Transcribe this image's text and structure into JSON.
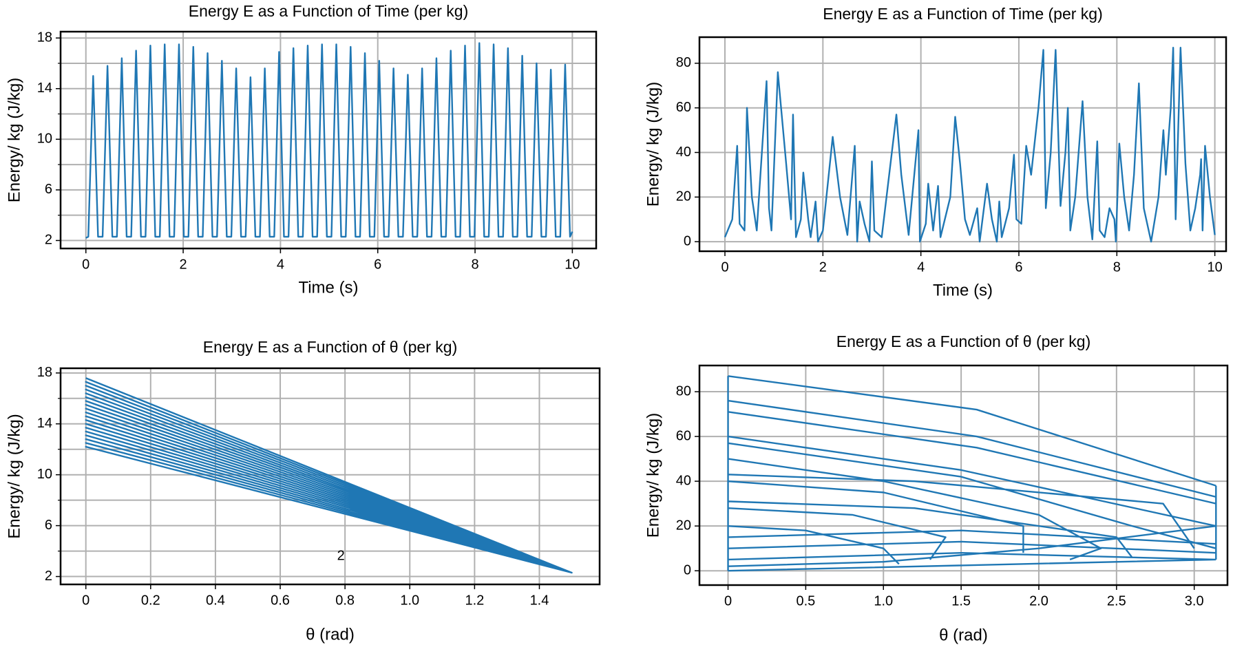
{
  "chart_data": [
    {
      "type": "line",
      "title": "Energy E as a Function of Time (per kg)",
      "x_label": "Time (s)",
      "y_label": "Energy/ kg (J/kg)",
      "xlim": [
        -0.52,
        10.49
      ],
      "ylim": [
        1.37,
        18.5
      ],
      "xticks": [
        0,
        2,
        4,
        6,
        8,
        10
      ],
      "yticks": [
        2,
        6,
        10,
        14,
        18
      ],
      "yminor": [
        4,
        8,
        12,
        16
      ],
      "grid": true,
      "x": [
        0,
        0.05,
        0.15,
        0.25,
        0.344,
        0.444,
        0.544,
        0.638,
        0.738,
        0.838,
        0.932,
        1.032,
        1.132,
        1.226,
        1.326,
        1.426,
        1.52,
        1.62,
        1.72,
        1.814,
        1.914,
        2.014,
        2.108,
        2.208,
        2.308,
        2.402,
        2.502,
        2.602,
        2.696,
        2.796,
        2.896,
        2.99,
        3.09,
        3.19,
        3.284,
        3.384,
        3.484,
        3.578,
        3.678,
        3.778,
        3.872,
        3.972,
        4.072,
        4.166,
        4.266,
        4.366,
        4.46,
        4.56,
        4.66,
        4.754,
        4.854,
        4.954,
        5.048,
        5.148,
        5.248,
        5.342,
        5.442,
        5.542,
        5.636,
        5.736,
        5.836,
        5.93,
        6.03,
        6.13,
        6.224,
        6.324,
        6.424,
        6.518,
        6.618,
        6.718,
        6.812,
        6.912,
        7.012,
        7.106,
        7.206,
        7.306,
        7.4,
        7.5,
        7.6,
        7.694,
        7.794,
        7.894,
        7.988,
        8.088,
        8.188,
        8.282,
        8.382,
        8.482,
        8.576,
        8.676,
        8.776,
        8.87,
        8.97,
        9.07,
        9.164,
        9.264,
        9.364,
        9.458,
        9.558,
        9.658,
        9.752,
        9.852,
        9.952,
        10
      ],
      "series": [
        {
          "color": "#1f77b4",
          "values": [
            2.2,
            2.3,
            15.0,
            2.3,
            2.3,
            15.8,
            2.3,
            2.3,
            16.4,
            2.3,
            2.3,
            17.0,
            2.3,
            2.3,
            17.4,
            2.3,
            2.3,
            17.5,
            2.3,
            2.3,
            17.5,
            2.3,
            2.3,
            17.3,
            2.3,
            2.3,
            16.8,
            2.3,
            2.3,
            16.2,
            2.3,
            2.3,
            15.6,
            2.3,
            2.3,
            14.9,
            2.3,
            2.3,
            15.6,
            2.3,
            2.3,
            16.9,
            2.3,
            2.3,
            17.2,
            2.3,
            2.3,
            17.4,
            2.3,
            2.3,
            17.5,
            2.3,
            2.3,
            17.5,
            2.3,
            2.3,
            17.3,
            2.3,
            2.3,
            16.8,
            2.3,
            2.3,
            16.2,
            2.3,
            2.3,
            15.6,
            2.3,
            2.3,
            15.1,
            2.3,
            2.3,
            15.6,
            2.3,
            2.3,
            16.4,
            2.3,
            2.3,
            17.0,
            2.3,
            2.3,
            17.4,
            2.3,
            2.3,
            17.6,
            2.3,
            2.3,
            17.5,
            2.3,
            2.3,
            17.2,
            2.3,
            2.3,
            16.6,
            2.3,
            2.3,
            16.0,
            2.3,
            2.3,
            15.5,
            2.3,
            2.3,
            15.9,
            2.3,
            2.7
          ]
        }
      ]
    },
    {
      "type": "line",
      "title": "Energy E as a Function of Time (per kg)",
      "x_label": "Time (s)",
      "y_label": "Energy/ kg (J/kg)",
      "xlim": [
        -0.52,
        10.23
      ],
      "ylim": [
        -4.3,
        91.7
      ],
      "xticks": [
        0,
        2,
        4,
        6,
        8,
        10
      ],
      "yticks": [
        0,
        20,
        40,
        60,
        80
      ],
      "grid": true,
      "x": [
        0,
        0.15,
        0.25,
        0.3,
        0.4,
        0.45,
        0.55,
        0.65,
        0.85,
        0.9,
        0.95,
        1.08,
        1.25,
        1.35,
        1.39,
        1.45,
        1.55,
        1.6,
        1.7,
        1.75,
        1.85,
        1.9,
        2.0,
        2.2,
        2.35,
        2.5,
        2.65,
        2.7,
        2.75,
        2.85,
        2.95,
        3.0,
        3.05,
        3.2,
        3.5,
        3.6,
        3.75,
        3.95,
        3.98,
        4.1,
        4.15,
        4.25,
        4.35,
        4.4,
        4.6,
        4.7,
        4.8,
        4.9,
        5.0,
        5.15,
        5.2,
        5.35,
        5.45,
        5.55,
        5.6,
        5.65,
        5.8,
        5.9,
        5.95,
        6.05,
        6.15,
        6.25,
        6.4,
        6.5,
        6.55,
        6.65,
        6.75,
        6.85,
        6.95,
        7.0,
        7.05,
        7.15,
        7.3,
        7.4,
        7.5,
        7.6,
        7.65,
        7.75,
        7.85,
        7.95,
        7.98,
        8.05,
        8.15,
        8.25,
        8.35,
        8.45,
        8.55,
        8.7,
        8.85,
        8.95,
        9.0,
        9.1,
        9.15,
        9.2,
        9.3,
        9.4,
        9.5,
        9.6,
        9.7,
        9.72,
        9.75,
        9.8,
        9.9,
        10.0
      ],
      "series": [
        {
          "color": "#1f77b4",
          "values": [
            2,
            10,
            43,
            8,
            5,
            60,
            20,
            5,
            72,
            15,
            5,
            76,
            35,
            10,
            57,
            2,
            10,
            31,
            10,
            2,
            18,
            0,
            5,
            47,
            20,
            3,
            43,
            0,
            18,
            8,
            0,
            36,
            5,
            2,
            57,
            30,
            3,
            50,
            0,
            8,
            26,
            5,
            25,
            2,
            20,
            56,
            35,
            10,
            3,
            15,
            0,
            26,
            10,
            0,
            18,
            2,
            15,
            39,
            10,
            8,
            43,
            30,
            60,
            86,
            15,
            40,
            86,
            16,
            40,
            60,
            5,
            20,
            63,
            20,
            1,
            45,
            5,
            2,
            15,
            10,
            0,
            44,
            20,
            5,
            30,
            71,
            15,
            0,
            20,
            50,
            30,
            60,
            87,
            10,
            87,
            35,
            5,
            15,
            30,
            37,
            5,
            43,
            20,
            3
          ]
        }
      ]
    },
    {
      "type": "line",
      "title": "Energy E as a Function of θ (per kg)",
      "x_label": "θ (rad)",
      "y_label": "Energy/ kg (J/kg)",
      "xlim": [
        -0.078,
        1.586
      ],
      "ylim": [
        1.38,
        18.37
      ],
      "xticks": [
        0,
        0.2,
        0.4,
        0.6,
        0.8,
        {
          "value": 1,
          "label": "1.0"
        },
        1.2,
        1.4
      ],
      "yticks": [
        2,
        6,
        10,
        14,
        18
      ],
      "yminor": [
        4,
        8,
        12,
        16
      ],
      "grid": true,
      "annotations": [
        "2"
      ],
      "x": [
        0,
        1.5,
        0,
        1.5,
        0,
        1.5,
        0,
        1.5,
        0,
        1.5,
        0,
        1.5,
        0,
        1.5,
        0,
        1.5,
        0,
        1.5,
        0,
        1.5,
        0,
        1.5,
        0,
        1.5,
        0,
        1.5,
        0,
        1.5,
        0,
        1.5,
        0,
        1.5,
        0,
        1.5,
        0,
        1.5,
        0,
        1.5
      ],
      "series": [
        {
          "color": "#1f77b4",
          "values": [
            17.6,
            2.3,
            17.3,
            2.3,
            17.0,
            2.3,
            16.7,
            2.3,
            16.4,
            2.3,
            16.1,
            2.3,
            15.8,
            2.3,
            15.5,
            2.3,
            15.2,
            2.3,
            14.9,
            2.3,
            14.6,
            2.3,
            14.3,
            2.3,
            14.0,
            2.3,
            13.7,
            2.3,
            13.4,
            2.3,
            13.1,
            2.3,
            12.8,
            2.3,
            12.5,
            2.3,
            12.2,
            2.3
          ]
        }
      ]
    },
    {
      "type": "line",
      "title": "Energy E as a Function of θ (per kg)",
      "x_label": "θ (rad)",
      "y_label": "Energy/ kg (J/kg)",
      "xlim": [
        -0.184,
        3.214
      ],
      "ylim": [
        -6.4,
        91.7
      ],
      "xticks": [
        0,
        0.5,
        {
          "value": 1,
          "label": "1.0"
        },
        1.5,
        {
          "value": 2,
          "label": "2.0"
        },
        2.5,
        {
          "value": 3,
          "label": "3.0"
        }
      ],
      "yticks": [
        0,
        20,
        40,
        60,
        80
      ],
      "grid": true,
      "x": [
        0,
        1.6,
        3.14,
        null,
        0,
        1.6,
        3.14,
        null,
        0,
        1.6,
        3.14,
        null,
        0,
        1.5,
        3.14,
        null,
        0,
        1.5,
        2.6,
        3.14,
        null,
        0,
        1.0,
        2.0,
        2.4,
        2.2,
        null,
        0,
        1.2,
        2.8,
        3.0,
        null,
        0,
        1.0,
        1.9,
        1.9,
        null,
        0,
        1.2,
        2.5,
        2.6,
        null,
        0,
        0.8,
        1.4,
        1.3,
        null,
        0,
        0.5,
        1.0,
        1.1,
        null,
        0,
        1.5,
        3.14,
        null,
        0,
        1.5,
        3.14,
        null,
        0,
        1.5,
        3.14,
        null,
        0,
        1.0,
        2.0,
        3.14,
        null,
        0,
        3.14,
        null,
        0,
        0,
        null,
        3.14,
        3.14
      ],
      "series": [
        {
          "color": "#1f77b4",
          "values": [
            87,
            72,
            38,
            null,
            76,
            60,
            33,
            null,
            71,
            55,
            30,
            null,
            60,
            45,
            20,
            null,
            57,
            42,
            20,
            10,
            null,
            50,
            40,
            25,
            10,
            5,
            null,
            43,
            40,
            30,
            10,
            null,
            40,
            35,
            20,
            8,
            null,
            31,
            28,
            15,
            6,
            null,
            28,
            25,
            15,
            5,
            null,
            20,
            18,
            10,
            3,
            null,
            15,
            18,
            12,
            null,
            10,
            13,
            8,
            null,
            5,
            8,
            5,
            null,
            2,
            4,
            10,
            20,
            null,
            0,
            5,
            null,
            0,
            87,
            null,
            5,
            38
          ]
        }
      ]
    }
  ]
}
